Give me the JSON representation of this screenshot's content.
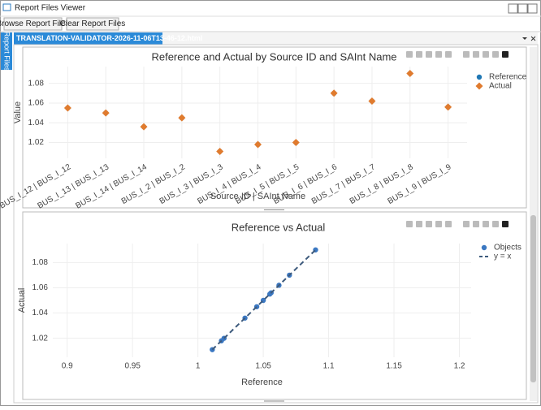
{
  "window": {
    "title": "Report Files Viewer"
  },
  "toolbar": {
    "buttons": [
      "Browse Report Files",
      "Clear Report Files"
    ]
  },
  "side_tab": "Report Files",
  "tab": {
    "label": "TRANSLATION-VALIDATOR-2026-11-06T13-46-12.html"
  },
  "chart_data": [
    {
      "type": "scatter",
      "title": "Reference and Actual by Source ID and SAInt Name",
      "x_label": "Source ID | SAInt Name",
      "y_label": "Value",
      "categories": [
        "BUS_I_12 | BUS_I_12",
        "BUS_I_13 | BUS_I_13",
        "BUS_I_14 | BUS_I_14",
        "BUS_I_2 | BUS_I_2",
        "BUS_I_3 | BUS_I_3",
        "BUS_I_4 | BUS_I_4",
        "BUS_I_5 | BUS_I_5",
        "BUS_I_6 | BUS_I_6",
        "BUS_I_7 | BUS_I_7",
        "BUS_I_8 | BUS_I_8",
        "BUS_I_9 | BUS_I_9"
      ],
      "series": [
        {
          "name": "Reference",
          "color": "#1f77b4",
          "marker": "circle",
          "values": [
            1.055,
            1.05,
            1.036,
            1.045,
            1.011,
            1.018,
            1.02,
            1.07,
            1.062,
            1.09,
            1.056
          ]
        },
        {
          "name": "Actual",
          "color": "#e07b2e",
          "marker": "diamond",
          "values": [
            1.055,
            1.05,
            1.036,
            1.045,
            1.011,
            1.018,
            1.02,
            1.07,
            1.062,
            1.09,
            1.056
          ]
        }
      ],
      "ylim": [
        1.004,
        1.097
      ],
      "yticks": [
        1.02,
        1.04,
        1.06,
        1.08
      ],
      "grid": true
    },
    {
      "type": "scatter",
      "title": "Reference vs Actual",
      "x_label": "Reference",
      "y_label": "Actual",
      "series": [
        {
          "name": "Objects",
          "color": "#3b78c2",
          "marker": "circle",
          "x": [
            1.011,
            1.018,
            1.02,
            1.036,
            1.045,
            1.05,
            1.055,
            1.056,
            1.062,
            1.07,
            1.09
          ],
          "values": [
            1.011,
            1.018,
            1.02,
            1.036,
            1.045,
            1.05,
            1.055,
            1.056,
            1.062,
            1.07,
            1.09
          ]
        },
        {
          "name": "y = x",
          "color": "#3d5a7c",
          "marker": "line",
          "dash": true,
          "x": [
            1.011,
            1.09
          ],
          "values": [
            1.011,
            1.09
          ]
        }
      ],
      "xlim": [
        0.889,
        1.209
      ],
      "xticks": [
        0.9,
        0.95,
        1,
        1.05,
        1.1,
        1.15,
        1.2
      ],
      "ylim": [
        1.005,
        1.095
      ],
      "yticks": [
        1.02,
        1.04,
        1.06,
        1.08
      ],
      "grid": true
    }
  ]
}
